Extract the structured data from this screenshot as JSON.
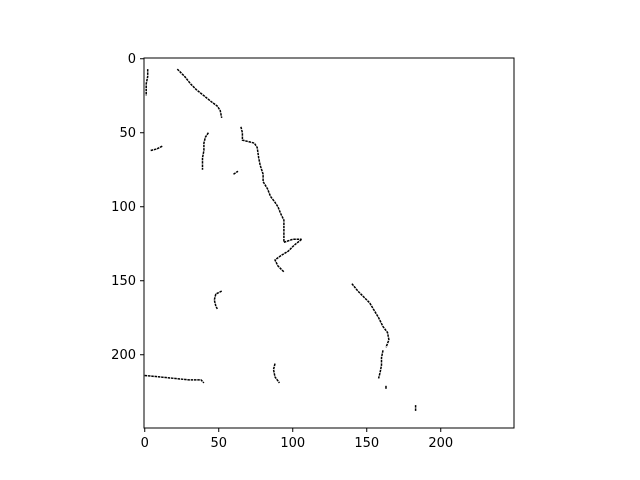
{
  "chart_data": {
    "type": "heatmap",
    "title": "",
    "xlabel": "",
    "ylabel": "",
    "image_shape": [
      250,
      250
    ],
    "xlim": [
      -0.5,
      249.5
    ],
    "ylim": [
      249.5,
      -0.5
    ],
    "x_ticks": [
      0,
      50,
      100,
      150,
      200
    ],
    "y_ticks": [
      0,
      50,
      100,
      150,
      200
    ],
    "x_tick_labels": [
      "0",
      "50",
      "100",
      "150",
      "200"
    ],
    "y_tick_labels": [
      "0",
      "50",
      "100",
      "150",
      "200"
    ],
    "background_color": "#ffffff",
    "stroke_color": "#000000",
    "edge_paths": [
      [
        [
          22,
          7
        ],
        [
          27,
          12
        ],
        [
          31,
          17
        ],
        [
          35,
          21
        ],
        [
          40,
          25
        ],
        [
          45,
          29
        ],
        [
          49,
          32
        ],
        [
          51,
          35
        ],
        [
          52,
          40
        ]
      ],
      [
        [
          2,
          7
        ],
        [
          2,
          12
        ],
        [
          1,
          17
        ],
        [
          1,
          25
        ]
      ],
      [
        [
          4,
          62
        ],
        [
          8,
          61
        ],
        [
          12,
          59
        ]
      ],
      [
        [
          43,
          50
        ],
        [
          41,
          53
        ],
        [
          40,
          57
        ],
        [
          40,
          62
        ],
        [
          39,
          67
        ],
        [
          39,
          72
        ],
        [
          39,
          75
        ]
      ],
      [
        [
          65,
          46
        ],
        [
          66,
          50
        ],
        [
          66,
          55
        ],
        [
          70,
          56
        ],
        [
          74,
          57
        ],
        [
          76,
          60
        ],
        [
          77,
          67
        ],
        [
          78,
          72
        ],
        [
          80,
          78
        ],
        [
          80,
          83
        ],
        [
          83,
          88
        ],
        [
          85,
          93
        ],
        [
          88,
          97
        ],
        [
          90,
          100
        ],
        [
          92,
          105
        ],
        [
          94,
          109
        ],
        [
          94,
          115
        ],
        [
          94,
          120
        ],
        [
          94,
          124
        ]
      ],
      [
        [
          94,
          124
        ],
        [
          100,
          122
        ],
        [
          106,
          122
        ]
      ],
      [
        [
          106,
          122
        ],
        [
          101,
          126
        ],
        [
          97,
          130
        ],
        [
          92,
          133
        ],
        [
          88,
          136
        ],
        [
          90,
          140
        ],
        [
          94,
          144
        ]
      ],
      [
        [
          60,
          78
        ],
        [
          63,
          76
        ]
      ],
      [
        [
          52,
          157
        ],
        [
          48,
          159
        ],
        [
          47,
          163
        ],
        [
          48,
          167
        ],
        [
          49,
          169
        ]
      ],
      [
        [
          0,
          214
        ],
        [
          10,
          215
        ],
        [
          20,
          216
        ],
        [
          30,
          217
        ],
        [
          38,
          217
        ],
        [
          40,
          219
        ]
      ],
      [
        [
          88,
          206
        ],
        [
          87,
          210
        ],
        [
          88,
          215
        ],
        [
          91,
          219
        ]
      ],
      [
        [
          140,
          152
        ],
        [
          144,
          157
        ],
        [
          148,
          161
        ],
        [
          152,
          165
        ],
        [
          155,
          170
        ],
        [
          158,
          175
        ],
        [
          161,
          181
        ],
        [
          164,
          185
        ],
        [
          165,
          190
        ],
        [
          163,
          195
        ]
      ],
      [
        [
          161,
          197
        ],
        [
          160,
          202
        ],
        [
          160,
          207
        ],
        [
          159,
          212
        ],
        [
          158,
          216
        ]
      ],
      [
        [
          163,
          222
        ]
      ],
      [
        [
          183,
          234
        ],
        [
          183,
          238
        ]
      ]
    ]
  }
}
